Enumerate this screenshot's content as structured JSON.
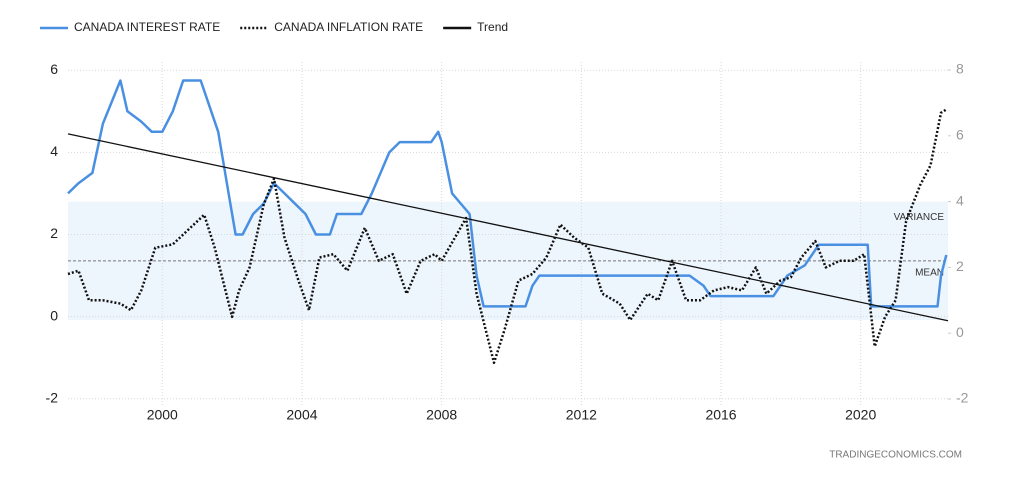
{
  "chart_data": {
    "type": "line",
    "legend_position": "top-left",
    "grid": true,
    "xlim": [
      1997.3,
      2022.5
    ],
    "xticks": [
      2000,
      2004,
      2008,
      2012,
      2016,
      2020
    ],
    "ylim": [
      -2.2,
      6.2
    ],
    "yticks": [
      -2,
      0,
      2,
      4,
      6
    ],
    "y2lim": [
      -2,
      8
    ],
    "y2ticks": [
      -2,
      0,
      2,
      4,
      6,
      8
    ],
    "variance": {
      "label": "VARIANCE",
      "range": [
        0.4,
        4.0
      ],
      "axis": "y2",
      "color": "#eef6fd"
    },
    "mean": {
      "label": "MEAN",
      "value": 2.2,
      "axis": "y2"
    },
    "source": "TRADINGECONOMICS.COM",
    "series": [
      {
        "name": "CANADA INTEREST RATE",
        "color": "#4a90e2",
        "line_style": "solid",
        "axis": "y",
        "x": [
          1997.3,
          1997.6,
          1998.0,
          1998.3,
          1998.8,
          1999.0,
          1999.4,
          1999.7,
          2000.0,
          2000.3,
          2000.6,
          2001.1,
          2001.4,
          2001.6,
          2001.9,
          2002.1,
          2002.3,
          2002.6,
          2002.9,
          2003.2,
          2003.5,
          2003.8,
          2004.1,
          2004.4,
          2004.8,
          2005.0,
          2005.7,
          2006.0,
          2006.5,
          2006.8,
          2007.7,
          2007.9,
          2008.0,
          2008.3,
          2008.8,
          2009.0,
          2009.2,
          2010.4,
          2010.6,
          2010.8,
          2015.1,
          2015.5,
          2015.7,
          2017.5,
          2017.7,
          2017.9,
          2018.4,
          2018.8,
          2020.2,
          2020.3,
          2022.2,
          2022.3,
          2022.45
        ],
        "values": [
          3.0,
          3.25,
          3.5,
          4.7,
          5.75,
          5.0,
          4.75,
          4.5,
          4.5,
          5.0,
          5.75,
          5.75,
          5.0,
          4.5,
          3.0,
          2.0,
          2.0,
          2.5,
          2.75,
          3.25,
          3.0,
          2.75,
          2.5,
          2.0,
          2.0,
          2.5,
          2.5,
          3.0,
          4.0,
          4.25,
          4.25,
          4.5,
          4.25,
          3.0,
          2.5,
          1.0,
          0.25,
          0.25,
          0.75,
          1.0,
          1.0,
          0.75,
          0.5,
          0.5,
          0.75,
          1.0,
          1.25,
          1.75,
          1.75,
          0.25,
          0.25,
          1.0,
          1.5
        ]
      },
      {
        "name": "CANADA INFLATION RATE",
        "color": "#111111",
        "line_style": "dotted",
        "axis": "y2",
        "x": [
          1997.3,
          1997.6,
          1997.9,
          1998.3,
          1998.8,
          1999.1,
          1999.4,
          1999.8,
          2000.3,
          2000.8,
          2001.2,
          2001.5,
          2002.0,
          2002.2,
          2002.5,
          2002.9,
          2003.2,
          2003.5,
          2003.9,
          2004.2,
          2004.5,
          2004.9,
          2005.3,
          2005.8,
          2006.2,
          2006.6,
          2007.0,
          2007.4,
          2007.8,
          2008.0,
          2008.7,
          2009.0,
          2009.5,
          2009.8,
          2010.2,
          2010.6,
          2011.0,
          2011.4,
          2011.8,
          2012.2,
          2012.6,
          2013.1,
          2013.4,
          2013.9,
          2014.2,
          2014.6,
          2015.0,
          2015.4,
          2015.8,
          2016.2,
          2016.6,
          2017.0,
          2017.3,
          2017.7,
          2018.0,
          2018.3,
          2018.7,
          2019.0,
          2019.4,
          2019.8,
          2020.1,
          2020.4,
          2020.7,
          2021.0,
          2021.3,
          2021.7,
          2022.0,
          2022.3,
          2022.45
        ],
        "values": [
          1.8,
          1.9,
          1.0,
          1.0,
          0.9,
          0.7,
          1.3,
          2.6,
          2.7,
          3.2,
          3.6,
          2.6,
          0.5,
          1.3,
          2.0,
          3.9,
          4.7,
          2.9,
          1.6,
          0.7,
          2.3,
          2.4,
          1.9,
          3.2,
          2.2,
          2.4,
          1.2,
          2.2,
          2.4,
          2.2,
          3.5,
          1.2,
          -0.9,
          0.1,
          1.6,
          1.8,
          2.3,
          3.3,
          2.9,
          2.6,
          1.2,
          0.9,
          0.4,
          1.2,
          1.0,
          2.2,
          1.0,
          1.0,
          1.3,
          1.4,
          1.3,
          2.0,
          1.2,
          1.6,
          1.7,
          2.3,
          2.8,
          2.0,
          2.2,
          2.2,
          2.4,
          -0.4,
          0.5,
          1.0,
          3.4,
          4.5,
          5.1,
          6.7,
          6.8
        ]
      },
      {
        "name": "Trend",
        "color": "#111111",
        "line_style": "solid",
        "axis": "y",
        "x": [
          1997.3,
          2022.5
        ],
        "values": [
          4.45,
          -0.1
        ]
      }
    ]
  }
}
